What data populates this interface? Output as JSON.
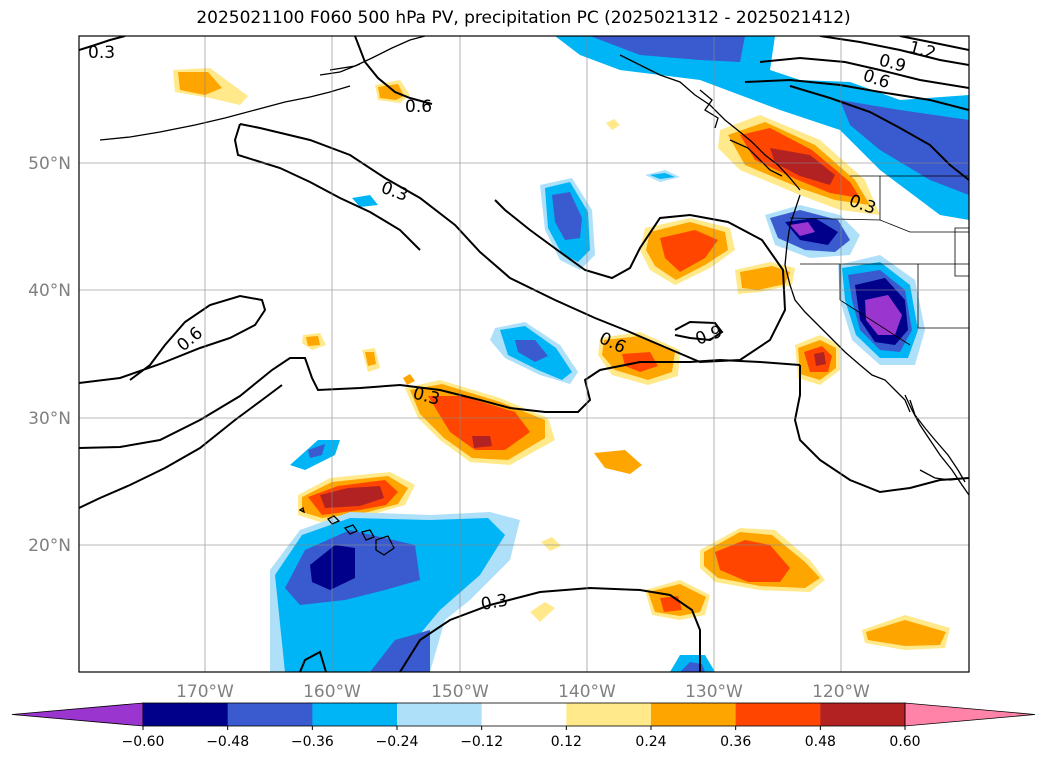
{
  "title": "2025021100 F060 500 hPa PV, precipitation PC (2025021312 - 2025021412)",
  "lat_labels": [
    "50°N",
    "40°N",
    "30°N",
    "20°N"
  ],
  "lon_labels": [
    "170°W",
    "160°W",
    "150°W",
    "140°W",
    "130°W",
    "120°W"
  ],
  "colorbar": {
    "tick_labels": [
      "−0.60",
      "−0.48",
      "−0.36",
      "−0.24",
      "−0.12",
      "0.12",
      "0.24",
      "0.36",
      "0.48",
      "0.60"
    ],
    "colors": [
      "#9a35d0",
      "#00008b",
      "#3a5bcf",
      "#00b5f5",
      "#aee0fa",
      "#ffffff",
      "#ffe98a",
      "#ffa500",
      "#ff4500",
      "#b22222",
      "#ff82a8"
    ]
  },
  "contour_labels": [
    "0.3",
    "0.3",
    "0.3",
    "0.3",
    "0.3",
    "0.6",
    "0.6",
    "0.6",
    "0.6",
    "0.9",
    "0.9",
    "1.2"
  ],
  "colors": {
    "neg_purple": "#9a35d0",
    "neg_navy": "#00008b",
    "neg_royal": "#3a5bcf",
    "neg_cyan": "#00b5f5",
    "neg_light": "#aee0fa",
    "pos_yellow": "#ffe98a",
    "pos_orange": "#ffa500",
    "pos_redorange": "#ff4500",
    "pos_firebrick": "#b22222",
    "pos_pink": "#ff82a8"
  }
}
